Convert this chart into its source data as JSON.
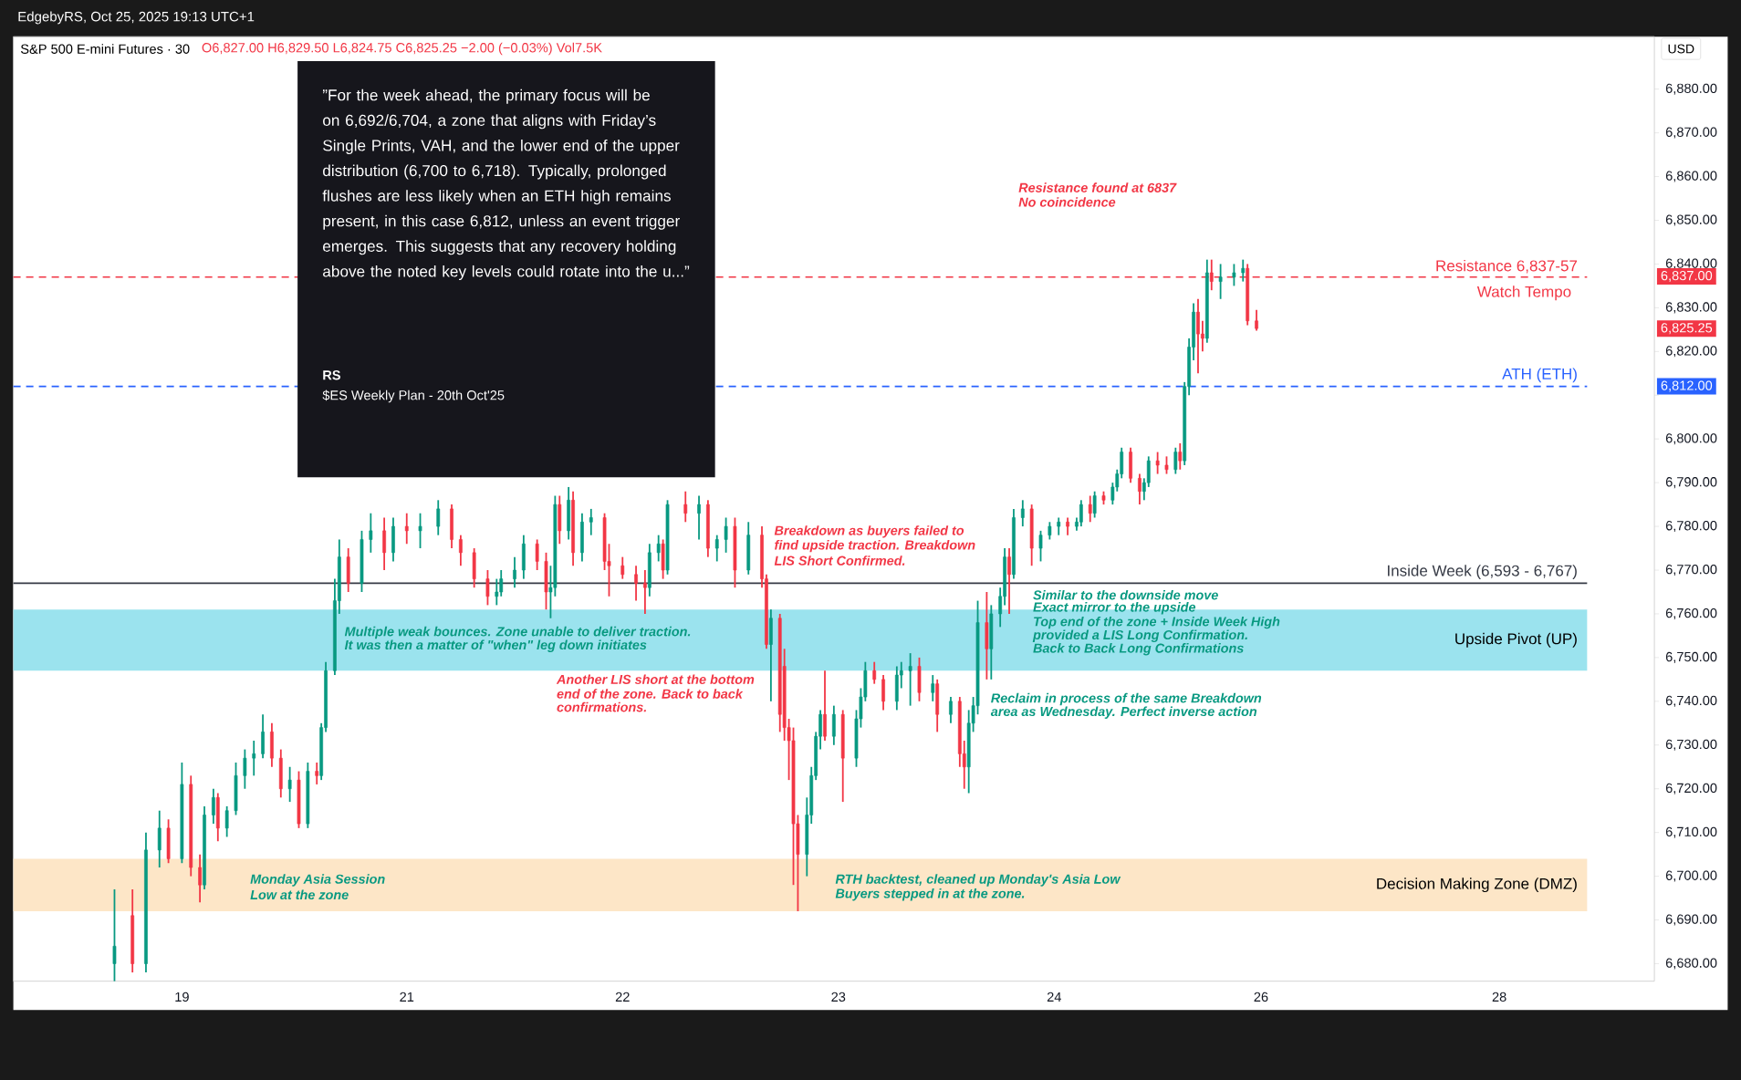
{
  "chart_data": {
    "type": "candlestick",
    "title": "S&P 500 E-mini Futures · 30",
    "subtitle": "O6,827.00  H6,829.50  L6,824.75  C6,825.25  −2.00 (−0.03%)  Vol7.5K",
    "categories": [
      null,
      null,
      null,
      null,
      null,
      null,
      null,
      null,
      null,
      null,
      null,
      null,
      null,
      null,
      null,
      null,
      null,
      null,
      null,
      null,
      null,
      null,
      null,
      null,
      null,
      null,
      null,
      null,
      null,
      null,
      null,
      null,
      null,
      null,
      null,
      null,
      null,
      "19",
      null,
      null,
      null,
      null,
      null,
      null,
      null,
      null,
      null,
      null,
      null,
      null,
      null,
      null,
      null,
      null,
      null,
      null,
      null,
      null,
      null,
      null,
      null,
      null,
      null,
      null,
      null,
      null,
      null,
      null,
      null,
      null,
      null,
      null,
      null,
      null,
      null,
      null,
      null,
      null,
      null,
      null,
      null,
      null,
      null,
      null,
      null,
      null,
      null,
      "21",
      null,
      null,
      null,
      null,
      null,
      null,
      null,
      null,
      null,
      null,
      null,
      null,
      null,
      null,
      null,
      null,
      null,
      null,
      null,
      null,
      null,
      null,
      null,
      null,
      null,
      null,
      null,
      null,
      null,
      null,
      null,
      null,
      null,
      null,
      null,
      null,
      null,
      null,
      null,
      null,
      null,
      null,
      null,
      null,
      null,
      null,
      null,
      "22",
      null,
      null,
      null,
      null,
      null,
      null,
      null,
      null,
      null,
      null,
      null,
      null,
      null,
      null,
      null,
      null,
      null,
      null,
      null,
      null,
      null,
      null,
      null,
      null,
      null,
      null,
      null,
      null,
      null,
      null,
      null,
      null,
      null,
      null,
      null,
      null,
      null,
      null,
      null,
      null,
      null,
      null,
      null,
      null,
      null,
      null,
      null,
      "23",
      null,
      null,
      null,
      null,
      null,
      null,
      null,
      null,
      null,
      null,
      null,
      null,
      null,
      null,
      null,
      null,
      null,
      null,
      null,
      null,
      null,
      null,
      null,
      null,
      null,
      null,
      null,
      null,
      null,
      null,
      null,
      null,
      null,
      null,
      null,
      null,
      null,
      null,
      null,
      null,
      null,
      null,
      null,
      null,
      null,
      null,
      null,
      "24",
      null,
      null,
      null,
      null,
      null,
      null,
      null,
      null,
      null,
      null,
      null,
      null,
      null,
      null,
      null,
      null,
      null,
      null,
      null,
      null,
      null,
      null,
      null,
      null,
      null,
      null,
      null,
      null,
      null,
      null,
      null,
      null,
      null,
      null,
      null,
      null,
      null,
      null,
      null,
      null,
      null,
      null,
      null,
      null,
      null,
      "26",
      null,
      null,
      null,
      null,
      null,
      null,
      null,
      null,
      null,
      null,
      null,
      null,
      null,
      null,
      null,
      null,
      null,
      null,
      null,
      null,
      null,
      null,
      null,
      null,
      null,
      null,
      null,
      null,
      null,
      null,
      null,
      null,
      null,
      null,
      null,
      null,
      null,
      null,
      null,
      null,
      null,
      null,
      null,
      null,
      null,
      null,
      null,
      null,
      null,
      null,
      null,
      null,
      "28",
      null,
      null,
      null,
      null,
      null,
      null,
      null,
      null,
      null,
      null,
      null,
      null,
      null,
      null,
      null,
      null,
      null,
      null,
      null,
      null,
      null,
      null,
      null,
      null,
      null,
      null,
      null,
      null,
      null,
      null,
      null,
      null,
      null,
      null
    ],
    "ohlc": [
      null,
      null,
      null,
      null,
      null,
      null,
      null,
      null,
      null,
      null,
      null,
      null,
      null,
      null,
      null,
      null,
      null,
      null,
      null,
      null,
      null,
      null,
      [
        6680,
        6697,
        6676,
        6684
      ],
      null,
      null,
      null,
      [
        6691,
        6697,
        6678,
        6680
      ],
      null,
      null,
      [
        6680,
        6710,
        6678,
        6706
      ],
      null,
      null,
      [
        6706,
        6715,
        6702,
        6711
      ],
      null,
      [
        6711,
        6713,
        6703,
        6704
      ],
      null,
      null,
      [
        6704,
        6726,
        6703,
        6721
      ],
      null,
      [
        6721,
        6723,
        6700,
        6702
      ],
      null,
      [
        6702,
        6705,
        6694,
        6698
      ],
      [
        6698,
        6716,
        6697,
        6714
      ],
      null,
      [
        6714,
        6720,
        6712,
        6718
      ],
      [
        6718,
        6719,
        6708,
        6711
      ],
      null,
      [
        6711,
        6716,
        6709,
        6715
      ],
      null,
      [
        6715,
        6726,
        6714,
        6723
      ],
      null,
      [
        6723,
        6729,
        6720,
        6727
      ],
      null,
      [
        6727,
        6731,
        6723,
        6728
      ],
      null,
      [
        6728,
        6737,
        6727,
        6733
      ],
      null,
      [
        6733,
        6735,
        6725,
        6727
      ],
      null,
      [
        6727,
        6729,
        6718,
        6720
      ],
      null,
      [
        6720,
        6725,
        6717,
        6722
      ],
      null,
      [
        6722,
        6724,
        6711,
        6712
      ],
      null,
      [
        6712,
        6726,
        6711,
        6724
      ],
      null,
      [
        6724,
        6726,
        6721,
        6723
      ],
      [
        6723,
        6735,
        6722,
        6734
      ],
      [
        6734,
        6749,
        6733,
        6747
      ],
      null,
      [
        6747,
        6768,
        6746,
        6763
      ],
      [
        6763,
        6777,
        6760,
        6773
      ],
      null,
      [
        6773,
        6775,
        6765,
        6767
      ],
      null,
      null,
      [
        6767,
        6779,
        6765,
        6777
      ],
      null,
      [
        6777,
        6783,
        6774,
        6779
      ],
      null,
      null,
      [
        6779,
        6782,
        6770,
        6774
      ],
      null,
      [
        6774,
        6782,
        6772,
        6780
      ],
      null,
      null,
      [
        6780,
        6783,
        6776,
        6779
      ],
      null,
      null,
      [
        6779,
        6783,
        6775,
        6780
      ],
      null,
      null,
      null,
      [
        6780,
        6786,
        6778,
        6784
      ],
      null,
      null,
      [
        6784,
        6785,
        6775,
        6777
      ],
      null,
      [
        6777,
        6778,
        6771,
        6774
      ],
      null,
      null,
      [
        6774,
        6775,
        6766,
        6768
      ],
      null,
      null,
      [
        6768,
        6770,
        6762,
        6764
      ],
      null,
      [
        6764,
        6768,
        6762,
        6765
      ],
      [
        6765,
        6770,
        6764,
        6768
      ],
      null,
      null,
      [
        6768,
        6773,
        6766,
        6770
      ],
      null,
      [
        6770,
        6778,
        6768,
        6776
      ],
      null,
      null,
      [
        6776,
        6777,
        6770,
        6772
      ],
      null,
      [
        6772,
        6774,
        6761,
        6765
      ],
      [
        6765,
        6771,
        6759,
        6766
      ],
      [
        6766,
        6787,
        6764,
        6785
      ],
      [
        6785,
        6787,
        6776,
        6779
      ],
      null,
      [
        6779,
        6789,
        6777,
        6786
      ],
      [
        6786,
        6788,
        6771,
        6774
      ],
      null,
      [
        6774,
        6783,
        6772,
        6781
      ],
      null,
      [
        6781,
        6784,
        6778,
        6782
      ],
      null,
      null,
      [
        6782,
        6783,
        6770,
        6772
      ],
      [
        6772,
        6776,
        6764,
        6771
      ],
      null,
      null,
      [
        6771,
        6773,
        6768,
        6769
      ],
      null,
      null,
      [
        6769,
        6771,
        6763,
        6767
      ],
      null,
      [
        6767,
        6770,
        6760,
        6766
      ],
      [
        6766,
        6776,
        6764,
        6774
      ],
      null,
      [
        6774,
        6778,
        6772,
        6776
      ],
      [
        6776,
        6777,
        6768,
        6770
      ],
      [
        6770,
        6786,
        6769,
        6785
      ],
      null,
      null,
      null,
      [
        6785,
        6788,
        6781,
        6783
      ],
      null,
      null,
      [
        6783,
        6787,
        6777,
        6785
      ],
      null,
      [
        6785,
        6786,
        6773,
        6775
      ],
      null,
      [
        6775,
        6778,
        6772,
        6777
      ],
      null,
      [
        6777,
        6782,
        6774,
        6780
      ],
      null,
      [
        6780,
        6782,
        6766,
        6770
      ],
      null,
      null,
      [
        6770,
        6781,
        6769,
        6778
      ],
      null,
      null,
      [
        6778,
        6780,
        6766,
        6768
      ],
      [
        6768,
        6769,
        6752,
        6753
      ],
      [
        6753,
        6761,
        6740,
        6759
      ],
      null,
      [
        6759,
        6760,
        6733,
        6737
      ],
      [
        6748,
        6752,
        6731,
        6734
      ],
      [
        6734,
        6736,
        6722,
        6731
      ],
      [
        6731,
        6734,
        6698,
        6712
      ],
      [
        6712,
        6714,
        6692,
        6705
      ],
      null,
      [
        6705,
        6718,
        6700,
        6714
      ],
      [
        6714,
        6725,
        6712,
        6723
      ],
      [
        6723,
        6733,
        6722,
        6732
      ],
      [
        6732,
        6738,
        6729,
        6737
      ],
      [
        6737,
        6747,
        6731,
        6732
      ],
      null,
      [
        6732,
        6739,
        6730,
        6737
      ],
      null,
      [
        6737,
        6738,
        6717,
        6727
      ],
      null,
      null,
      [
        6727,
        6738,
        6725,
        6736
      ],
      [
        6736,
        6743,
        6734,
        6741
      ],
      [
        6741,
        6749,
        6740,
        6747
      ],
      null,
      [
        6747,
        6749,
        6744,
        6745
      ],
      null,
      [
        6745,
        6746,
        6738,
        6740
      ],
      null,
      null,
      [
        6740,
        6748,
        6738,
        6746
      ],
      [
        6746,
        6749,
        6743,
        6747
      ],
      null,
      [
        6747,
        6751,
        6739,
        6748
      ],
      null,
      [
        6748,
        6750,
        6740,
        6742
      ],
      null,
      null,
      [
        6742,
        6746,
        6740,
        6744
      ],
      [
        6744,
        6745,
        6733,
        6737
      ],
      null,
      null,
      [
        6737,
        6741,
        6735,
        6740
      ],
      null,
      [
        6740,
        6741,
        6725,
        6728
      ],
      [
        6728,
        6731,
        6720,
        6725
      ],
      [
        6725,
        6738,
        6719,
        6735
      ],
      [
        6735,
        6741,
        6733,
        6739
      ],
      [
        6739,
        6763,
        6737,
        6758
      ],
      null,
      [
        6758,
        6765,
        6745,
        6752
      ],
      [
        6752,
        6762,
        6745,
        6760
      ],
      null,
      [
        6760,
        6766,
        6757,
        6764
      ],
      [
        6764,
        6775,
        6762,
        6773
      ],
      [
        6773,
        6775,
        6760,
        6769
      ],
      [
        6769,
        6784,
        6768,
        6782
      ],
      null,
      [
        6782,
        6786,
        6780,
        6784
      ],
      null,
      [
        6784,
        6785,
        6771,
        6775
      ],
      null,
      [
        6775,
        6779,
        6772,
        6778
      ],
      null,
      [
        6778,
        6781,
        6777,
        6780
      ],
      null,
      [
        6780,
        6782,
        6778,
        6781
      ],
      null,
      [
        6781,
        6782,
        6778,
        6780
      ],
      null,
      [
        6780,
        6782,
        6779,
        6781
      ],
      [
        6781,
        6786,
        6780,
        6785
      ],
      null,
      [
        6785,
        6787,
        6781,
        6783
      ],
      [
        6783,
        6788,
        6782,
        6787
      ],
      null,
      [
        6787,
        6788,
        6785,
        6786
      ],
      null,
      [
        6786,
        6790,
        6785,
        6789
      ],
      [
        6789,
        6793,
        6788,
        6792
      ],
      [
        6792,
        6798,
        6791,
        6797
      ],
      null,
      [
        6797,
        6798,
        6790,
        6791
      ],
      null,
      [
        6791,
        6792,
        6785,
        6788
      ],
      [
        6788,
        6791,
        6786,
        6790
      ],
      [
        6790,
        6796,
        6789,
        6795
      ],
      null,
      [
        6795,
        6797,
        6792,
        6794
      ],
      null,
      [
        6794,
        6796,
        6792,
        6793
      ],
      null,
      [
        6793,
        6798,
        6792,
        6797
      ],
      [
        6797,
        6799,
        6793,
        6795
      ],
      [
        6795,
        6813,
        6794,
        6812
      ],
      [
        6812,
        6823,
        6810,
        6821
      ],
      [
        6821,
        6831,
        6818,
        6829
      ],
      [
        6829,
        6832,
        6815,
        6824
      ],
      [
        6824,
        6827,
        6820,
        6823
      ],
      [
        6823,
        6841,
        6822,
        6838
      ],
      [
        6838,
        6841,
        6834,
        6836
      ],
      null,
      [
        6836,
        6840,
        6832,
        6837
      ],
      null,
      null,
      [
        6837,
        6840,
        6835,
        6838
      ],
      null,
      [
        6838,
        6841,
        6836,
        6839
      ],
      [
        6839,
        6840,
        6826,
        6827
      ],
      null,
      [
        6827,
        6829.5,
        6824.75,
        6825.25
      ],
      null,
      null,
      null,
      null,
      null,
      null,
      null,
      null,
      null,
      null,
      null,
      null,
      null,
      null,
      null,
      null,
      null,
      null,
      null,
      null,
      null,
      null,
      null,
      null,
      null,
      null,
      null,
      null,
      null,
      null,
      null,
      null,
      null,
      null,
      null,
      null,
      null,
      null,
      null,
      null,
      null,
      null,
      null,
      null,
      null,
      null,
      null,
      null,
      null,
      null,
      null,
      null,
      null,
      null,
      null,
      null,
      null,
      null,
      null,
      null,
      null,
      null,
      null,
      null,
      null,
      null,
      null,
      null,
      null,
      null,
      null,
      null,
      null,
      null,
      null,
      null,
      null,
      null,
      null,
      null,
      null,
      null,
      null,
      null,
      null,
      null,
      null,
      null
    ],
    "ylim": [
      6676,
      6892
    ],
    "yticks": [
      {
        "value": 6680,
        "label": "6,680.00"
      },
      {
        "value": 6690,
        "label": "6,690.00"
      },
      {
        "value": 6700,
        "label": "6,700.00"
      },
      {
        "value": 6710,
        "label": "6,710.00"
      },
      {
        "value": 6720,
        "label": "6,720.00"
      },
      {
        "value": 6730,
        "label": "6,730.00"
      },
      {
        "value": 6740,
        "label": "6,740.00"
      },
      {
        "value": 6750,
        "label": "6,750.00"
      },
      {
        "value": 6760,
        "label": "6,760.00"
      },
      {
        "value": 6770,
        "label": "6,770.00"
      },
      {
        "value": 6780,
        "label": "6,780.00"
      },
      {
        "value": 6790,
        "label": "6,790.00"
      },
      {
        "value": 6800,
        "label": "6,800.00"
      },
      {
        "value": 6810,
        "label": null
      },
      {
        "value": 6820,
        "label": "6,820.00"
      },
      {
        "value": 6830,
        "label": "6,830.00"
      },
      {
        "value": 6840,
        "label": "6,840.00"
      },
      {
        "value": 6850,
        "label": "6,850.00"
      },
      {
        "value": 6860,
        "label": "6,860.00"
      },
      {
        "value": 6870,
        "label": "6,870.00"
      },
      {
        "value": 6880,
        "label": "6,880.00"
      }
    ],
    "bands": [
      {
        "axis": "y",
        "from": 6747,
        "to": 6761,
        "label": "Upside Pivot (UP)",
        "color": "#9be3ee"
      },
      {
        "axis": "y",
        "from": 6692,
        "to": 6704,
        "label": "Decision Making Zone (DMZ)",
        "color": "#fde6c7"
      }
    ],
    "ref_lines": [
      {
        "axis": "y",
        "value": 6837,
        "label": "Resistance 6,837-57",
        "color": "#f23645",
        "line_style": "dashed"
      },
      {
        "axis": "y",
        "value": 6812,
        "label": "ATH (ETH)",
        "color": "#2962ff",
        "line_style": "dashed"
      },
      {
        "axis": "y",
        "value": 6767,
        "label": "Inside Week (6,593 - 6,767)",
        "color": "#363a45",
        "line_style": "solid"
      }
    ],
    "annotations": [
      "EdgebyRS, Oct 25, 2025 19:13 UTC+1",
      "USD",
      "”For the week ahead, the primary focus will be on 6,692/6,704, a zone that aligns with Friday’s Single Prints, VAH, and the lower end of the upper distribution (6,700 to 6,718). Typically, prolonged flushes are less likely when an ETH high remains present, in this case 6,812, unless an event trigger emerges. This suggests that any recovery holding above the noted key levels could rotate into the u...”",
      "RS",
      "$ES Weekly Plan - 20th Oct'25",
      "Resistance found at 6837",
      "No coincidence",
      "Breakdown as buyers failed to",
      "find upside traction. Breakdown",
      "LIS Short Confirmed.",
      "Multiple weak bounces. Zone unable to deliver traction.",
      "It was then a matter of \"when\" leg down initiates",
      "Another LIS short at the bottom",
      "end of the zone. Back to back",
      "confirmations.",
      "Similar to the downside move",
      "Exact mirror to the upside",
      "Top end of the zone + Inside Week High",
      "provided a LIS Long Confirmation.",
      "Back to Back Long Confirmations",
      "Reclaim in process of the same Breakdown",
      "area as Wednesday. Perfect inverse action",
      "Monday Asia Session",
      "Low at the zone",
      "RTH backtest, cleaned up Monday's Asia Low",
      "Buyers stepped in at the zone.",
      "Watch Tempo",
      "6,837.00",
      "6,825.25",
      "6,812.00"
    ]
  }
}
